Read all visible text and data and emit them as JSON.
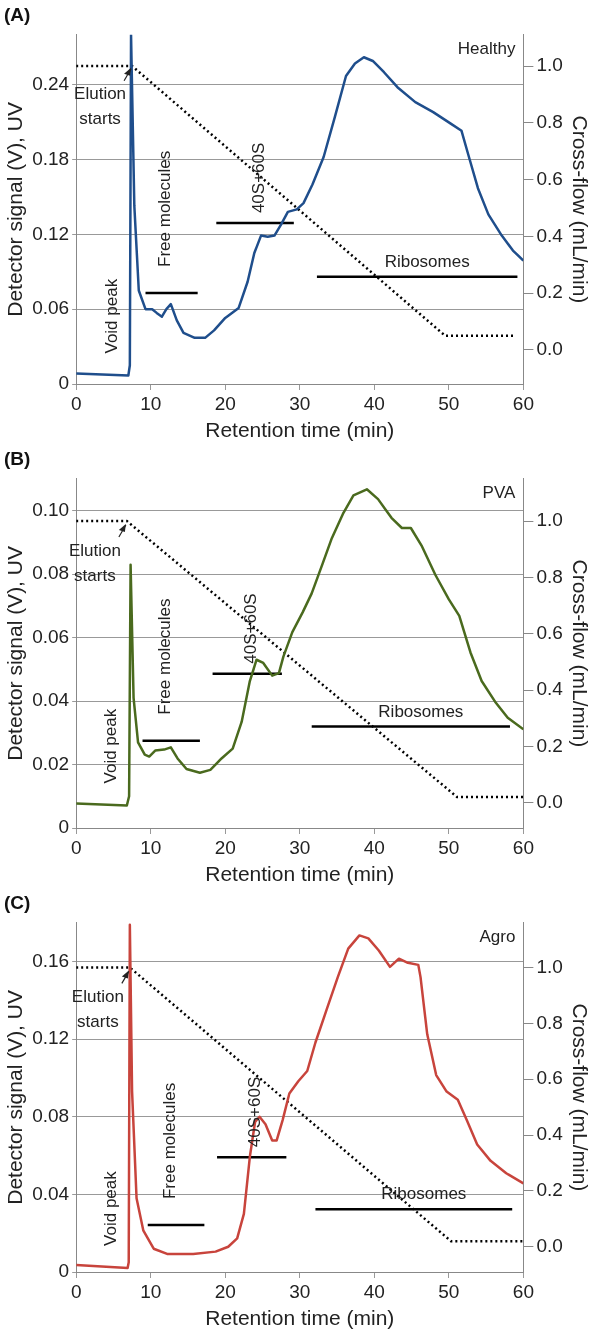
{
  "chart_data": [
    {
      "type": "line",
      "title": "(A)",
      "xlabel": "Retention time (min)",
      "ylabel": "Detector signal (V), UV",
      "y2label": "Cross-flow (mL/min)",
      "xlim": [
        0,
        60
      ],
      "xticks": [
        0,
        10,
        20,
        30,
        40,
        50,
        60
      ],
      "ylim": [
        0,
        0.28
      ],
      "yticks": [
        0,
        0.06,
        0.12,
        0.18,
        0.24
      ],
      "y2lim": [
        -0.12,
        1.11
      ],
      "y2ticks": [
        {
          "value": 0,
          "label": "0.0"
        },
        {
          "value": 0.2,
          "label": "0.2"
        },
        {
          "value": 0.4,
          "label": "0.4"
        },
        {
          "value": 0.6,
          "label": "0.6"
        },
        {
          "value": 0.8,
          "label": "0.8"
        },
        {
          "value": 1,
          "label": "1.0"
        }
      ],
      "grid": "y",
      "legend": false,
      "marker": "none",
      "series": [
        {
          "color": "#1f4e8c",
          "x": [
            0,
            7.0,
            7.2,
            7.36,
            7.8,
            8.4,
            9.3,
            10.2,
            10.8,
            11.5,
            12.1,
            12.7,
            13.5,
            14.4,
            15.9,
            17.3,
            18.5,
            20.0,
            21.8,
            23.0,
            23.9,
            24.8,
            25.7,
            26.6,
            27.5,
            28.4,
            29.6,
            30.5,
            31.7,
            33.2,
            34.7,
            36.2,
            37.4,
            38.6,
            39.8,
            41.3,
            43.1,
            45.5,
            47.9,
            50.2,
            51.7,
            52.6,
            53.9,
            55.3,
            57.1,
            58.6,
            60
          ],
          "values": [
            0.0085,
            0.0068,
            0.015,
            0.28,
            0.143,
            0.075,
            0.06,
            0.06,
            0.057,
            0.054,
            0.06,
            0.064,
            0.051,
            0.041,
            0.037,
            0.037,
            0.043,
            0.053,
            0.061,
            0.082,
            0.105,
            0.119,
            0.118,
            0.119,
            0.128,
            0.138,
            0.14,
            0.145,
            0.16,
            0.182,
            0.214,
            0.247,
            0.257,
            0.262,
            0.259,
            0.25,
            0.238,
            0.226,
            0.218,
            0.209,
            0.203,
            0.184,
            0.157,
            0.136,
            0.119,
            0.107,
            0.099
          ]
        },
        {
          "color": "#000000",
          "axis": "y2",
          "line_style": "dotted",
          "x": [
            0,
            7.5,
            49.5,
            59
          ],
          "values": [
            1.0,
            1.0,
            0.05,
            0.05
          ]
        },
        {
          "color": "#000000",
          "x": [
            9.3,
            16.3
          ],
          "values": [
            0.073,
            0.073
          ]
        },
        {
          "color": "#000000",
          "x": [
            18.8,
            29.2
          ],
          "values": [
            0.129,
            0.129
          ]
        },
        {
          "color": "#000000",
          "x": [
            32.3,
            59.2
          ],
          "values": [
            0.086,
            0.086
          ]
        }
      ],
      "annotations": [
        {
          "text": "Void peak",
          "x": 7.0,
          "y": 0.0068
        },
        {
          "text": "Free molecules",
          "x": 12.8,
          "y": 0.073
        },
        {
          "text": "40S+60S",
          "x": 24,
          "y": 0.129
        },
        {
          "text": "Ribosomes",
          "x": 45.75,
          "y": 0.086
        },
        {
          "text": "Elution\nstarts",
          "x": 7.5,
          "y": 0.256
        },
        "Healthy"
      ]
    },
    {
      "type": "line",
      "title": "(B)",
      "xlabel": "Retention time (min)",
      "ylabel": "Detector signal (V), UV",
      "y2label": "Cross-flow (mL/min)",
      "xlim": [
        0,
        60
      ],
      "xticks": [
        0,
        10,
        20,
        30,
        40,
        50,
        60
      ],
      "ylim": [
        0,
        0.11
      ],
      "yticks": [
        0,
        0.02,
        0.04,
        0.06,
        0.08,
        {
          "value": 0.1,
          "label": "0.10"
        }
      ],
      "y2lim": [
        -0.09,
        1.15
      ],
      "y2ticks": [
        {
          "value": 0,
          "label": "0.0"
        },
        {
          "value": 0.2,
          "label": "0.2"
        },
        {
          "value": 0.4,
          "label": "0.4"
        },
        {
          "value": 0.6,
          "label": "0.6"
        },
        {
          "value": 0.8,
          "label": "0.8"
        },
        {
          "value": 1,
          "label": "1.0"
        }
      ],
      "grid": "y",
      "legend": false,
      "marker": "none",
      "series": [
        {
          "color": "#4a6a1e",
          "x": [
            0,
            6.8,
            7.1,
            7.3,
            7.7,
            8.3,
            9.2,
            9.8,
            10.6,
            11.8,
            12.7,
            13.6,
            14.8,
            16.6,
            18.0,
            19.5,
            21.0,
            22.2,
            23.3,
            24.2,
            25.1,
            26.3,
            27.2,
            27.8,
            29.0,
            30.4,
            31.6,
            33.1,
            34.3,
            35.8,
            37.2,
            39.0,
            40.5,
            42.3,
            43.7,
            44.9,
            46.4,
            48.2,
            50.0,
            51.4,
            52.9,
            54.4,
            56.2,
            57.9,
            60
          ],
          "values": [
            0.0077,
            0.0071,
            0.01,
            0.0829,
            0.041,
            0.027,
            0.0231,
            0.0225,
            0.0244,
            0.0247,
            0.0254,
            0.0219,
            0.0186,
            0.0174,
            0.0183,
            0.0219,
            0.025,
            0.0334,
            0.0463,
            0.053,
            0.052,
            0.048,
            0.0488,
            0.054,
            0.0617,
            0.068,
            0.0739,
            0.0835,
            0.0913,
            0.099,
            0.1048,
            0.1067,
            0.1036,
            0.0977,
            0.0945,
            0.0945,
            0.0887,
            0.0797,
            0.072,
            0.0668,
            0.0553,
            0.0463,
            0.0398,
            0.0347,
            0.0311
          ]
        },
        {
          "color": "#000000",
          "axis": "y2",
          "line_style": "dotted",
          "x": [
            0,
            6.8,
            51.1,
            60
          ],
          "values": [
            1.0,
            1.0,
            0.02,
            0.02
          ]
        },
        {
          "color": "#000000",
          "x": [
            8.9,
            16.6
          ],
          "values": [
            0.0275,
            0.0275
          ]
        },
        {
          "color": "#000000",
          "x": [
            18.3,
            27.6
          ],
          "values": [
            0.0486,
            0.0486
          ]
        },
        {
          "color": "#000000",
          "x": [
            31.6,
            58.2
          ],
          "values": [
            0.032,
            0.032
          ]
        }
      ],
      "annotations": [
        {
          "text": "Void peak",
          "x": 6.8,
          "y": 0.0071
        },
        {
          "text": "Free molecules",
          "x": 12.75,
          "y": 0.0275
        },
        {
          "text": "40S+60S",
          "x": 22.95,
          "y": 0.0486
        },
        {
          "text": "Ribosomes",
          "x": 44.9,
          "y": 0.032
        },
        {
          "text": "Elution\nstarts",
          "x": 6.8,
          "y": 0.0967
        },
        "PVA"
      ]
    },
    {
      "type": "line",
      "title": "(C)",
      "xlabel": "Retention time (min)",
      "ylabel": "Detector signal (V), UV",
      "y2label": "Cross-flow (mL/min)",
      "xlim": [
        0,
        60
      ],
      "xticks": [
        0,
        10,
        20,
        30,
        40,
        50,
        60
      ],
      "ylim": [
        0,
        0.18
      ],
      "yticks": [
        0,
        0.04,
        0.08,
        0.12,
        0.16
      ],
      "y2lim": [
        -0.09,
        1.16
      ],
      "y2ticks": [
        {
          "value": 0,
          "label": "0.0"
        },
        {
          "value": 0.2,
          "label": "0.2"
        },
        {
          "value": 0.4,
          "label": "0.4"
        },
        {
          "value": 0.6,
          "label": "0.6"
        },
        {
          "value": 0.8,
          "label": "0.8"
        },
        {
          "value": 1,
          "label": "1.0"
        }
      ],
      "grid": "y",
      "legend": false,
      "marker": "none",
      "series": [
        {
          "color": "#c8443c",
          "x": [
            0,
            6.9,
            7.05,
            7.2,
            7.5,
            8.1,
            9.0,
            10.4,
            12.2,
            15.7,
            18.7,
            20.4,
            21.6,
            22.5,
            23.3,
            24.0,
            24.6,
            25.4,
            26.3,
            26.9,
            27.7,
            28.6,
            29.8,
            31.0,
            32.1,
            33.6,
            35.1,
            36.5,
            38.0,
            39.2,
            40.6,
            42.1,
            43.3,
            44.5,
            45.9,
            46.2,
            47.1,
            48.3,
            49.7,
            51.2,
            52.4,
            53.8,
            55.6,
            57.7,
            60
          ],
          "values": [
            0.0036,
            0.0021,
            0.005,
            0.179,
            0.093,
            0.038,
            0.0215,
            0.012,
            0.0093,
            0.0093,
            0.0105,
            0.013,
            0.0173,
            0.03,
            0.0594,
            0.0773,
            0.08,
            0.0762,
            0.0678,
            0.0678,
            0.0783,
            0.092,
            0.0983,
            0.1036,
            0.1183,
            0.1352,
            0.152,
            0.1667,
            0.1735,
            0.172,
            0.1657,
            0.1573,
            0.1615,
            0.1594,
            0.1583,
            0.152,
            0.1225,
            0.1015,
            0.093,
            0.0888,
            0.0783,
            0.0657,
            0.0573,
            0.0509,
            0.0457
          ]
        },
        {
          "color": "#000000",
          "axis": "y2",
          "line_style": "dotted",
          "x": [
            0,
            7.2,
            50.3,
            60
          ],
          "values": [
            1.0,
            1.0,
            0.02,
            0.02
          ]
        },
        {
          "color": "#000000",
          "x": [
            9.6,
            17.2
          ],
          "values": [
            0.0242,
            0.0242
          ]
        },
        {
          "color": "#000000",
          "x": [
            18.9,
            28.2
          ],
          "values": [
            0.0592,
            0.0592
          ]
        },
        {
          "color": "#000000",
          "x": [
            32.1,
            58.5
          ],
          "values": [
            0.0324,
            0.0324
          ]
        }
      ],
      "annotations": [
        {
          "text": "Void peak",
          "x": 6.9,
          "y": 0.0021
        },
        {
          "text": "Free molecules",
          "x": 13.4,
          "y": 0.0242
        },
        {
          "text": "40S+60S",
          "x": 23.55,
          "y": 0.0592
        },
        {
          "text": "Ribosomes",
          "x": 45.3,
          "y": 0.0324
        },
        {
          "text": "Elution\nstarts",
          "x": 7.2,
          "y": 0.157
        },
        "Agro"
      ]
    }
  ]
}
